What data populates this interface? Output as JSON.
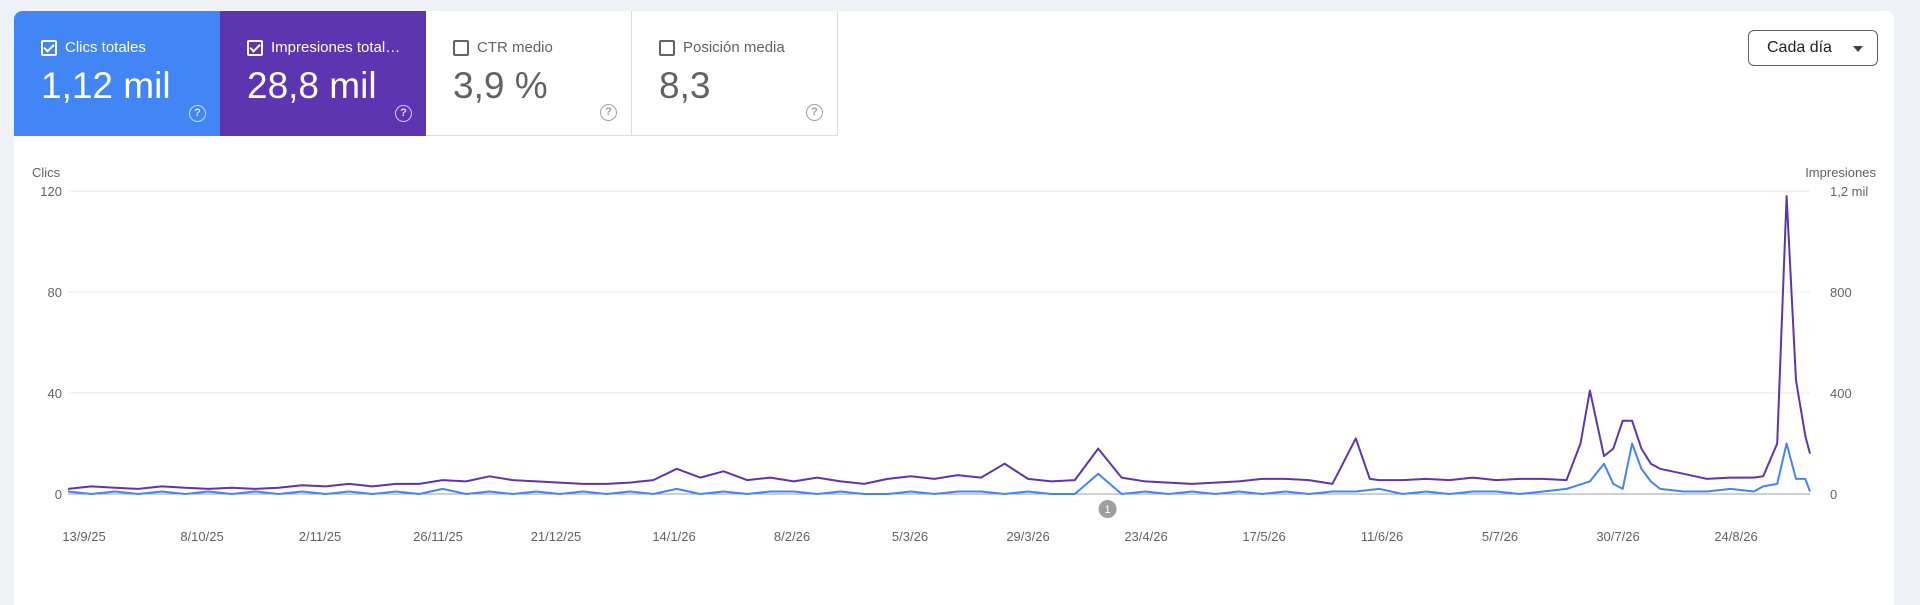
{
  "metrics": [
    {
      "label": "Clics totales",
      "value": "1,12 mil",
      "checked": true,
      "color": "#4285f4"
    },
    {
      "label": "Impresiones total…",
      "value": "28,8 mil",
      "checked": true,
      "color": "#5e35b1"
    },
    {
      "label": "CTR medio",
      "value": "3,9 %",
      "checked": false
    },
    {
      "label": "Posición media",
      "value": "8,3",
      "checked": false
    }
  ],
  "period_selector": {
    "label": "Cada día"
  },
  "annotation_marker": "1",
  "chart_data": {
    "type": "line",
    "left_axis": {
      "label": "Clics",
      "ticks": [
        "0",
        "40",
        "80",
        "120"
      ],
      "range": [
        0,
        120
      ]
    },
    "right_axis": {
      "label": "Impresiones",
      "ticks": [
        "0",
        "400",
        "800",
        "1,2 mil"
      ],
      "range": [
        0,
        1200
      ]
    },
    "x_tick_labels": [
      "13/9/25",
      "8/10/25",
      "2/11/25",
      "26/11/25",
      "21/12/25",
      "14/1/26",
      "8/2/26",
      "5/3/26",
      "29/3/26",
      "23/4/26",
      "17/5/26",
      "11/6/26",
      "5/7/26",
      "30/7/26",
      "24/8/26"
    ],
    "x_range_days": [
      0,
      372
    ],
    "annotation_day": 222,
    "series": [
      {
        "name": "Clics",
        "axis": "left",
        "color": "#4285f4",
        "points": [
          [
            0,
            1
          ],
          [
            5,
            0
          ],
          [
            10,
            1
          ],
          [
            15,
            0
          ],
          [
            20,
            1
          ],
          [
            25,
            0
          ],
          [
            30,
            1
          ],
          [
            35,
            0
          ],
          [
            40,
            1
          ],
          [
            45,
            0
          ],
          [
            50,
            1
          ],
          [
            55,
            0
          ],
          [
            60,
            1
          ],
          [
            65,
            0
          ],
          [
            70,
            1
          ],
          [
            75,
            0
          ],
          [
            80,
            2
          ],
          [
            85,
            0
          ],
          [
            90,
            1
          ],
          [
            95,
            0
          ],
          [
            100,
            1
          ],
          [
            105,
            0
          ],
          [
            110,
            1
          ],
          [
            115,
            0
          ],
          [
            120,
            1
          ],
          [
            125,
            0
          ],
          [
            130,
            2
          ],
          [
            135,
            0
          ],
          [
            140,
            1
          ],
          [
            145,
            0
          ],
          [
            150,
            1
          ],
          [
            155,
            1
          ],
          [
            160,
            0
          ],
          [
            165,
            1
          ],
          [
            170,
            0
          ],
          [
            175,
            0
          ],
          [
            180,
            1
          ],
          [
            185,
            0
          ],
          [
            190,
            1
          ],
          [
            195,
            1
          ],
          [
            200,
            0
          ],
          [
            205,
            1
          ],
          [
            210,
            0
          ],
          [
            215,
            0
          ],
          [
            220,
            8
          ],
          [
            225,
            0
          ],
          [
            230,
            1
          ],
          [
            235,
            0
          ],
          [
            240,
            1
          ],
          [
            245,
            0
          ],
          [
            250,
            1
          ],
          [
            255,
            0
          ],
          [
            260,
            1
          ],
          [
            265,
            0
          ],
          [
            270,
            1
          ],
          [
            275,
            1
          ],
          [
            280,
            2
          ],
          [
            285,
            0
          ],
          [
            290,
            1
          ],
          [
            295,
            0
          ],
          [
            300,
            1
          ],
          [
            305,
            1
          ],
          [
            310,
            0
          ],
          [
            315,
            1
          ],
          [
            320,
            2
          ],
          [
            325,
            5
          ],
          [
            328,
            12
          ],
          [
            330,
            4
          ],
          [
            332,
            2
          ],
          [
            334,
            20
          ],
          [
            336,
            10
          ],
          [
            338,
            5
          ],
          [
            340,
            2
          ],
          [
            345,
            1
          ],
          [
            350,
            1
          ],
          [
            355,
            2
          ],
          [
            360,
            1
          ],
          [
            362,
            3
          ],
          [
            365,
            4
          ],
          [
            367,
            20
          ],
          [
            369,
            6
          ],
          [
            371,
            6
          ],
          [
            372,
            1
          ]
        ]
      },
      {
        "name": "Impresiones",
        "axis": "right",
        "color": "#5e35b1",
        "points": [
          [
            0,
            20
          ],
          [
            5,
            30
          ],
          [
            10,
            25
          ],
          [
            15,
            20
          ],
          [
            20,
            30
          ],
          [
            25,
            25
          ],
          [
            30,
            20
          ],
          [
            35,
            25
          ],
          [
            40,
            20
          ],
          [
            45,
            25
          ],
          [
            50,
            35
          ],
          [
            55,
            30
          ],
          [
            60,
            40
          ],
          [
            65,
            30
          ],
          [
            70,
            40
          ],
          [
            75,
            40
          ],
          [
            80,
            55
          ],
          [
            85,
            50
          ],
          [
            90,
            70
          ],
          [
            95,
            55
          ],
          [
            100,
            50
          ],
          [
            105,
            45
          ],
          [
            110,
            40
          ],
          [
            115,
            40
          ],
          [
            120,
            45
          ],
          [
            125,
            55
          ],
          [
            130,
            100
          ],
          [
            135,
            65
          ],
          [
            140,
            90
          ],
          [
            145,
            55
          ],
          [
            150,
            65
          ],
          [
            155,
            50
          ],
          [
            160,
            65
          ],
          [
            165,
            50
          ],
          [
            170,
            40
          ],
          [
            175,
            60
          ],
          [
            180,
            70
          ],
          [
            185,
            60
          ],
          [
            190,
            75
          ],
          [
            195,
            65
          ],
          [
            200,
            120
          ],
          [
            205,
            60
          ],
          [
            210,
            50
          ],
          [
            215,
            55
          ],
          [
            220,
            180
          ],
          [
            225,
            65
          ],
          [
            230,
            50
          ],
          [
            235,
            45
          ],
          [
            240,
            40
          ],
          [
            245,
            45
          ],
          [
            250,
            50
          ],
          [
            255,
            60
          ],
          [
            260,
            60
          ],
          [
            265,
            55
          ],
          [
            270,
            40
          ],
          [
            275,
            220
          ],
          [
            278,
            60
          ],
          [
            280,
            55
          ],
          [
            285,
            55
          ],
          [
            290,
            60
          ],
          [
            295,
            55
          ],
          [
            300,
            65
          ],
          [
            305,
            55
          ],
          [
            310,
            60
          ],
          [
            315,
            60
          ],
          [
            320,
            55
          ],
          [
            323,
            200
          ],
          [
            325,
            410
          ],
          [
            328,
            150
          ],
          [
            330,
            180
          ],
          [
            332,
            290
          ],
          [
            334,
            290
          ],
          [
            336,
            180
          ],
          [
            338,
            120
          ],
          [
            340,
            100
          ],
          [
            345,
            80
          ],
          [
            350,
            60
          ],
          [
            355,
            65
          ],
          [
            360,
            65
          ],
          [
            362,
            70
          ],
          [
            365,
            200
          ],
          [
            367,
            1180
          ],
          [
            369,
            450
          ],
          [
            371,
            230
          ],
          [
            372,
            160
          ]
        ]
      }
    ]
  }
}
